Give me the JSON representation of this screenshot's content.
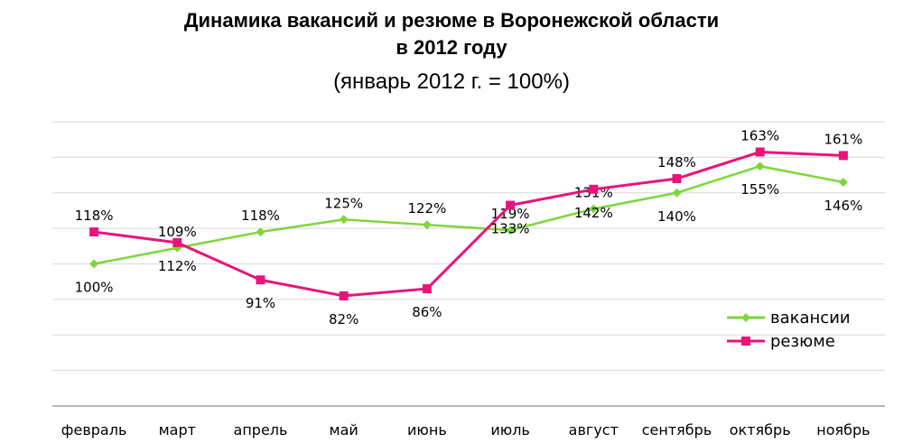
{
  "chart_data": {
    "type": "line",
    "title_line1": "Динамика вакансий  и резюме в Воронежской области",
    "title_line2": "в 2012 году",
    "subtitle": "(январь 2012 г. = 100%)",
    "categories": [
      "февраль",
      "март",
      "апрель",
      "май",
      "июнь",
      "июль",
      "август",
      "сентябрь",
      "октябрь",
      "ноябрь"
    ],
    "ylim": [
      20,
      180
    ],
    "grid": true,
    "legend_position": "bottom-right",
    "series": [
      {
        "name": "вакансии",
        "color": "#7ED63A",
        "marker": "diamond",
        "values": [
          100,
          109,
          118,
          125,
          122,
          119,
          131,
          140,
          155,
          146
        ],
        "labels": [
          "100%",
          "109%",
          "118%",
          "125%",
          "122%",
          "119%",
          "131%",
          "140%",
          "155%",
          "146%"
        ]
      },
      {
        "name": "резюме",
        "color": "#E8147A",
        "marker": "square",
        "values": [
          118,
          112,
          91,
          82,
          86,
          133,
          142,
          148,
          163,
          161
        ],
        "labels": [
          "118%",
          "112%",
          "91%",
          "82%",
          "86%",
          "133%",
          "142%",
          "148%",
          "163%",
          "161%"
        ]
      }
    ]
  }
}
